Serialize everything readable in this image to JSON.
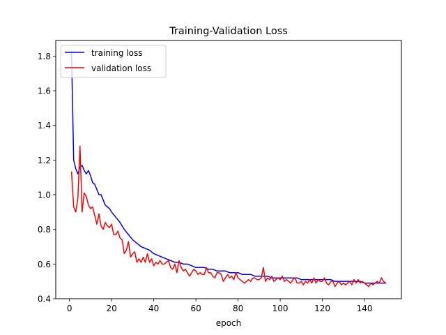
{
  "chart_data": {
    "type": "line",
    "title": "Training-Validation Loss",
    "xlabel": "epoch",
    "ylabel": "",
    "xlim": [
      -6.5,
      157.5
    ],
    "ylim": [
      0.4,
      1.89
    ],
    "xticks": [
      0,
      20,
      40,
      60,
      80,
      100,
      120,
      140
    ],
    "xtick_labels": [
      "0",
      "20",
      "40",
      "60",
      "80",
      "100",
      "120",
      "140"
    ],
    "yticks": [
      0.4,
      0.6,
      0.8,
      1.0,
      1.2,
      1.4,
      1.6,
      1.8
    ],
    "ytick_labels": [
      "0.4",
      "0.6",
      "0.8",
      "1.0",
      "1.2",
      "1.4",
      "1.6",
      "1.8"
    ],
    "grid": false,
    "legend_position": "top-left",
    "series": [
      {
        "name": "training loss",
        "color": "#0000ff",
        "x": [
          1,
          2,
          3,
          4,
          5,
          6,
          7,
          8,
          9,
          10,
          11,
          12,
          13,
          14,
          15,
          16,
          17,
          18,
          19,
          20,
          22,
          24,
          26,
          28,
          30,
          32,
          34,
          36,
          38,
          40,
          42,
          44,
          46,
          48,
          50,
          52,
          54,
          56,
          58,
          60,
          62,
          64,
          66,
          68,
          70,
          72,
          74,
          76,
          78,
          80,
          82,
          84,
          86,
          88,
          90,
          92,
          94,
          96,
          98,
          100,
          102,
          104,
          106,
          108,
          110,
          112,
          114,
          116,
          118,
          120,
          122,
          124,
          126,
          128,
          130,
          132,
          134,
          136,
          138,
          140,
          142,
          144,
          146,
          148,
          150
        ],
        "y": [
          1.82,
          1.2,
          1.15,
          1.12,
          1.16,
          1.17,
          1.14,
          1.12,
          1.14,
          1.11,
          1.07,
          1.06,
          1.03,
          1.0,
          1.0,
          0.97,
          0.94,
          0.93,
          0.92,
          0.9,
          0.87,
          0.84,
          0.8,
          0.77,
          0.74,
          0.72,
          0.7,
          0.69,
          0.68,
          0.66,
          0.65,
          0.64,
          0.63,
          0.62,
          0.61,
          0.61,
          0.6,
          0.6,
          0.59,
          0.58,
          0.58,
          0.58,
          0.57,
          0.57,
          0.56,
          0.56,
          0.56,
          0.55,
          0.55,
          0.55,
          0.54,
          0.54,
          0.54,
          0.53,
          0.53,
          0.53,
          0.53,
          0.52,
          0.52,
          0.52,
          0.52,
          0.52,
          0.52,
          0.52,
          0.51,
          0.51,
          0.51,
          0.51,
          0.51,
          0.51,
          0.51,
          0.51,
          0.5,
          0.5,
          0.5,
          0.5,
          0.5,
          0.5,
          0.5,
          0.49,
          0.49,
          0.49,
          0.49,
          0.49,
          0.49
        ]
      },
      {
        "name": "validation loss",
        "color": "#ff0000",
        "x": [
          1,
          2,
          3,
          4,
          5,
          6,
          7,
          8,
          9,
          10,
          11,
          12,
          13,
          14,
          15,
          16,
          17,
          18,
          19,
          20,
          21,
          22,
          23,
          24,
          25,
          26,
          27,
          28,
          29,
          30,
          31,
          32,
          33,
          34,
          35,
          36,
          37,
          38,
          39,
          40,
          41,
          42,
          43,
          44,
          45,
          46,
          47,
          48,
          49,
          50,
          51,
          52,
          53,
          54,
          55,
          56,
          57,
          58,
          59,
          60,
          61,
          62,
          63,
          64,
          65,
          66,
          67,
          68,
          69,
          70,
          71,
          72,
          73,
          74,
          75,
          76,
          77,
          78,
          79,
          80,
          81,
          82,
          83,
          84,
          85,
          86,
          87,
          88,
          89,
          90,
          91,
          92,
          93,
          94,
          95,
          96,
          97,
          98,
          99,
          100,
          101,
          102,
          103,
          104,
          105,
          106,
          107,
          108,
          109,
          110,
          111,
          112,
          113,
          114,
          115,
          116,
          117,
          118,
          119,
          120,
          121,
          122,
          123,
          124,
          125,
          126,
          127,
          128,
          129,
          130,
          131,
          132,
          133,
          134,
          135,
          136,
          137,
          138,
          139,
          140,
          141,
          142,
          143,
          144,
          145,
          146,
          147,
          148,
          149,
          150
        ],
        "y": [
          1.13,
          0.93,
          0.9,
          0.98,
          1.28,
          0.9,
          1.01,
          0.99,
          0.94,
          0.92,
          0.93,
          0.88,
          0.83,
          0.89,
          0.82,
          0.8,
          0.84,
          0.82,
          0.81,
          0.83,
          0.77,
          0.77,
          0.79,
          0.75,
          0.74,
          0.66,
          0.68,
          0.73,
          0.64,
          0.66,
          0.67,
          0.61,
          0.63,
          0.61,
          0.64,
          0.61,
          0.66,
          0.61,
          0.63,
          0.59,
          0.61,
          0.6,
          0.62,
          0.6,
          0.6,
          0.61,
          0.62,
          0.58,
          0.57,
          0.6,
          0.55,
          0.62,
          0.58,
          0.56,
          0.57,
          0.55,
          0.53,
          0.55,
          0.57,
          0.56,
          0.54,
          0.55,
          0.54,
          0.54,
          0.58,
          0.55,
          0.55,
          0.53,
          0.52,
          0.55,
          0.55,
          0.54,
          0.5,
          0.52,
          0.54,
          0.52,
          0.53,
          0.51,
          0.55,
          0.52,
          0.51,
          0.5,
          0.49,
          0.5,
          0.51,
          0.5,
          0.52,
          0.52,
          0.51,
          0.51,
          0.52,
          0.58,
          0.5,
          0.52,
          0.51,
          0.53,
          0.5,
          0.51,
          0.52,
          0.51,
          0.53,
          0.5,
          0.51,
          0.5,
          0.49,
          0.51,
          0.52,
          0.49,
          0.49,
          0.5,
          0.48,
          0.5,
          0.49,
          0.51,
          0.49,
          0.52,
          0.49,
          0.51,
          0.5,
          0.5,
          0.52,
          0.49,
          0.48,
          0.5,
          0.5,
          0.47,
          0.49,
          0.5,
          0.48,
          0.49,
          0.48,
          0.49,
          0.5,
          0.48,
          0.51,
          0.49,
          0.51,
          0.49,
          0.5,
          0.49,
          0.48,
          0.47,
          0.49,
          0.48,
          0.49,
          0.5,
          0.49,
          0.52,
          0.5,
          0.49
        ]
      }
    ]
  }
}
